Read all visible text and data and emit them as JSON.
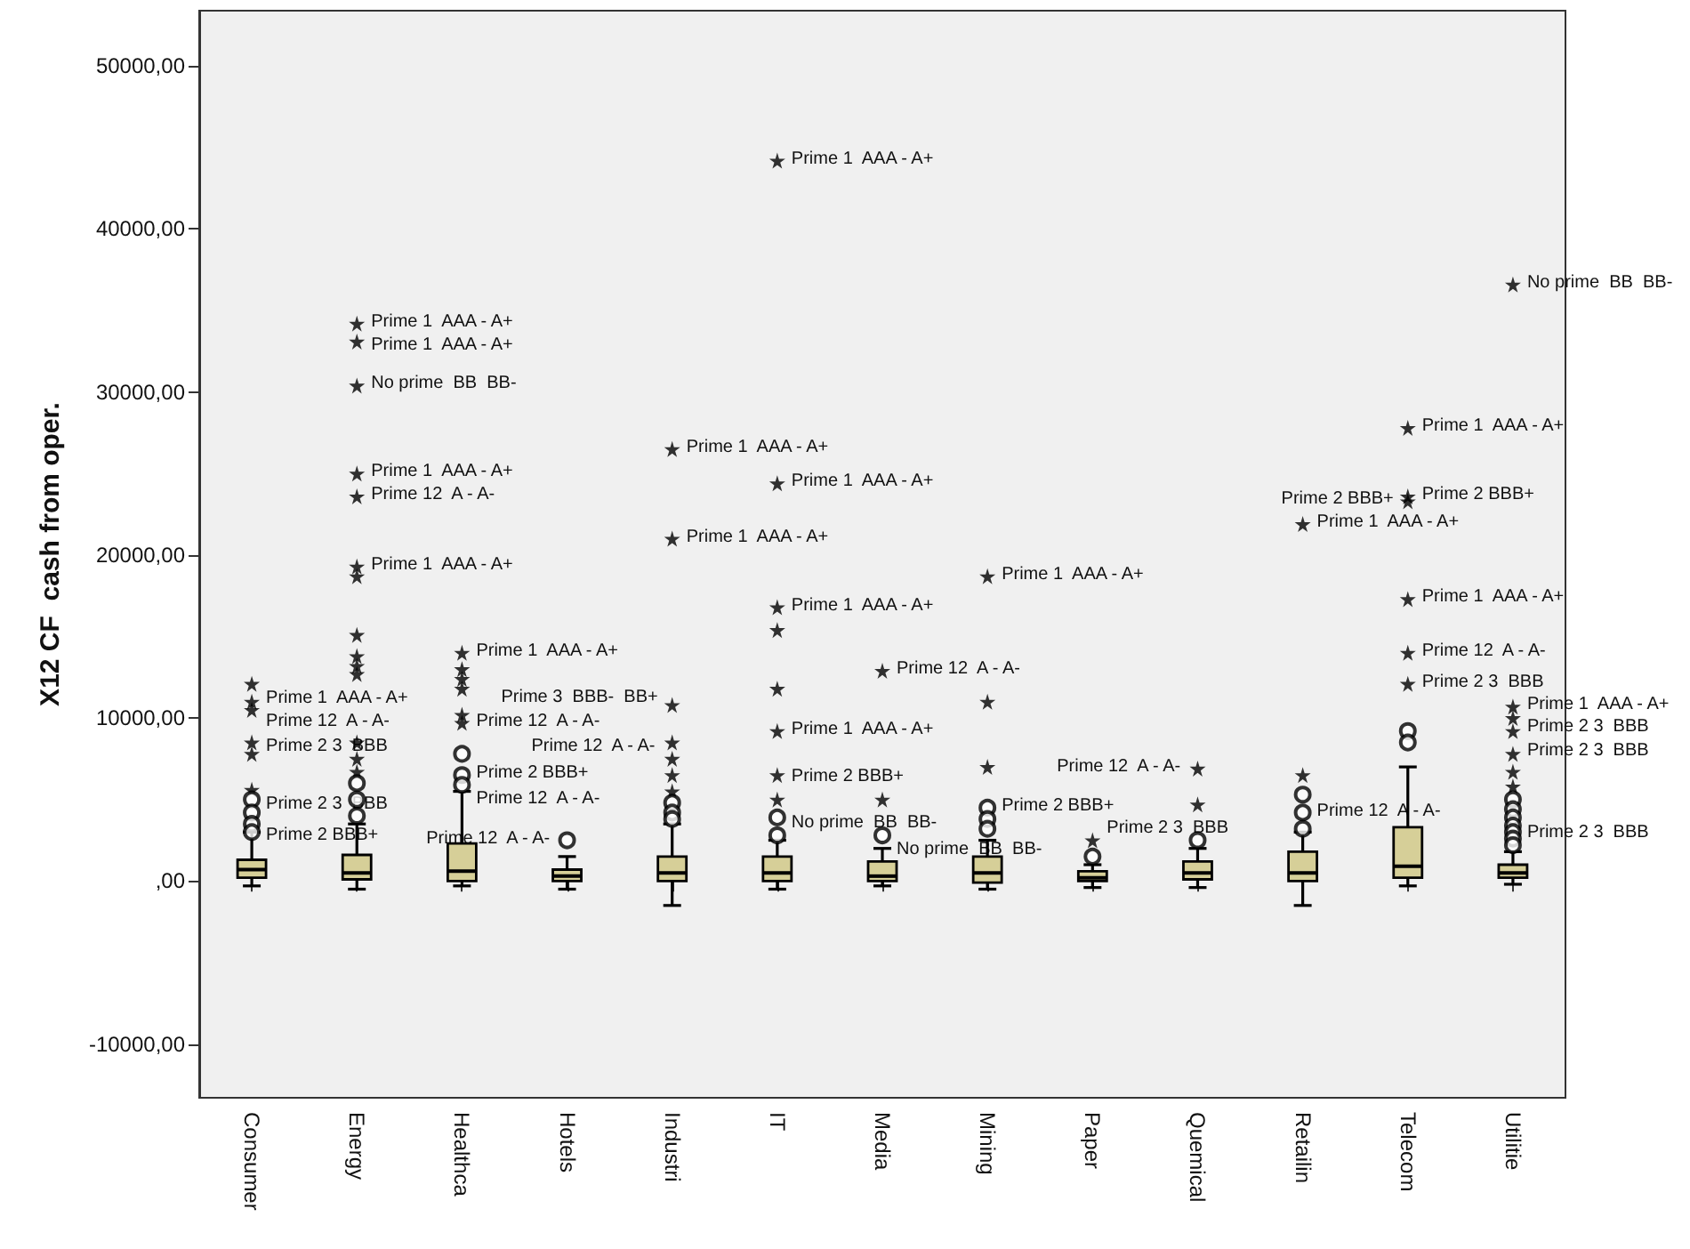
{
  "chart_data": {
    "type": "box",
    "ylabel": "X12 CF  cash from oper.",
    "color": "#d6cf98",
    "grid": false,
    "categories": [
      "Consumer",
      "Energy",
      "Healthca",
      "Hotels",
      "Industri",
      "IT",
      "Media",
      "Mining",
      "Paper",
      "Quemical",
      "Retailin",
      "Telecom",
      "Utilitie"
    ],
    "ylim": [
      -13300,
      53400
    ],
    "yticks": [
      {
        "value": -10000,
        "label": "-10000,00"
      },
      {
        "value": 0,
        "label": ",00"
      },
      {
        "value": 10000,
        "label": "10000,00"
      },
      {
        "value": 20000,
        "label": "20000,00"
      },
      {
        "value": 30000,
        "label": "30000,00"
      },
      {
        "value": 40000,
        "label": "40000,00"
      },
      {
        "value": 50000,
        "label": "50000,00"
      }
    ],
    "boxes": [
      {
        "low": -300,
        "q1": 200,
        "median": 700,
        "q3": 1300,
        "high": 3000
      },
      {
        "low": -500,
        "q1": 100,
        "median": 500,
        "q3": 1600,
        "high": 3500
      },
      {
        "low": -300,
        "q1": 0,
        "median": 600,
        "q3": 2300,
        "high": 5500
      },
      {
        "low": -500,
        "q1": 0,
        "median": 300,
        "q3": 700,
        "high": 1500
      },
      {
        "low": -1500,
        "q1": 0,
        "median": 500,
        "q3": 1500,
        "high": 3500
      },
      {
        "low": -500,
        "q1": 0,
        "median": 500,
        "q3": 1500,
        "high": 2500
      },
      {
        "low": -300,
        "q1": 0,
        "median": 300,
        "q3": 1200,
        "high": 2000
      },
      {
        "low": -500,
        "q1": -100,
        "median": 500,
        "q3": 1500,
        "high": 2500
      },
      {
        "low": -400,
        "q1": 0,
        "median": 200,
        "q3": 600,
        "high": 1000
      },
      {
        "low": -400,
        "q1": 100,
        "median": 500,
        "q3": 1200,
        "high": 2000
      },
      {
        "low": -1500,
        "q1": 0,
        "median": 500,
        "q3": 1800,
        "high": 3000
      },
      {
        "low": -300,
        "q1": 200,
        "median": 900,
        "q3": 3300,
        "high": 7000
      },
      {
        "low": -200,
        "q1": 200,
        "median": 500,
        "q3": 1000,
        "high": 1800
      }
    ],
    "series": [
      {
        "type": "scatter",
        "marker": "star",
        "color": "#000000",
        "x": [
          "Consumer",
          "Consumer",
          "Consumer",
          "Consumer",
          "Consumer",
          "Consumer",
          "Energy",
          "Energy",
          "Energy",
          "Energy",
          "Energy",
          "Energy",
          "Energy",
          "Energy",
          "Energy",
          "Energy",
          "Energy",
          "Energy",
          "Energy",
          "Energy",
          "Healthca",
          "Healthca",
          "Healthca",
          "Healthca",
          "Healthca",
          "Healthca",
          "Industri",
          "Industri",
          "Industri",
          "Industri",
          "Industri",
          "Industri",
          "Industri",
          "IT",
          "IT",
          "IT",
          "IT",
          "IT",
          "IT",
          "IT",
          "IT",
          "Media",
          "Media",
          "Mining",
          "Mining",
          "Mining",
          "Paper",
          "Quemical",
          "Quemical",
          "Retailin",
          "Retailin",
          "Telecom",
          "Telecom",
          "Telecom",
          "Telecom",
          "Telecom",
          "Telecom",
          "Utilitie",
          "Utilitie",
          "Utilitie",
          "Utilitie",
          "Utilitie",
          "Utilitie",
          "Utilitie"
        ],
        "values": [
          12100,
          11000,
          10500,
          8500,
          7800,
          5600,
          34200,
          33100,
          30400,
          25000,
          23600,
          19300,
          18700,
          15100,
          13800,
          13200,
          12700,
          8500,
          7500,
          6700,
          14000,
          13000,
          12400,
          11800,
          10200,
          9700,
          26500,
          21000,
          10800,
          8500,
          7500,
          6500,
          5500,
          44200,
          24400,
          16800,
          15400,
          11800,
          9200,
          6500,
          5000,
          12900,
          5000,
          18700,
          11000,
          7000,
          2500,
          6900,
          4700,
          21900,
          6500,
          27800,
          23600,
          23300,
          17300,
          14000,
          12100,
          36600,
          10700,
          10000,
          9200,
          7800,
          6700,
          5800
        ]
      },
      {
        "type": "scatter",
        "marker": "circle",
        "color": "#000000",
        "x": [
          "Consumer",
          "Consumer",
          "Consumer",
          "Consumer",
          "Energy",
          "Energy",
          "Energy",
          "Healthca",
          "Healthca",
          "Healthca",
          "Hotels",
          "Industri",
          "Industri",
          "Industri",
          "IT",
          "IT",
          "Media",
          "Mining",
          "Mining",
          "Mining",
          "Paper",
          "Quemical",
          "Retailin",
          "Retailin",
          "Retailin",
          "Telecom",
          "Telecom",
          "Utilitie",
          "Utilitie",
          "Utilitie",
          "Utilitie",
          "Utilitie",
          "Utilitie",
          "Utilitie"
        ],
        "values": [
          5000,
          4200,
          3500,
          3000,
          6000,
          5000,
          4000,
          7800,
          6500,
          5900,
          2500,
          4800,
          4200,
          3800,
          3900,
          2800,
          2800,
          4500,
          3800,
          3200,
          1500,
          2500,
          5300,
          4200,
          3200,
          9200,
          8500,
          5000,
          4400,
          3900,
          3400,
          3000,
          2600,
          2200
        ]
      }
    ],
    "annotations": [
      {
        "text": "Prime 1  AAA - A+",
        "x": "Consumer",
        "y": 12100
      },
      {
        "text": "Prime 12  A - A-",
        "x": "Consumer",
        "y": 11000
      },
      {
        "text": "Prime 2 3  BBB",
        "x": "Consumer",
        "y": 8500
      },
      {
        "text": "Prime 2 3  BBB",
        "x": "Consumer",
        "y": 5600
      },
      {
        "text": "Prime 2 BBB+",
        "x": "Consumer",
        "y": 3000
      },
      {
        "text": "Prime 1  AAA - A+",
        "x": "Energy",
        "y": 34200
      },
      {
        "text": "Prime 1  AAA - A+",
        "x": "Energy",
        "y": 33100
      },
      {
        "text": "No prime  BB  BB-",
        "x": "Energy",
        "y": 30400
      },
      {
        "text": "Prime 1  AAA - A+",
        "x": "Energy",
        "y": 25000
      },
      {
        "text": "Prime 12  A - A-",
        "x": "Energy",
        "y": 23600
      },
      {
        "text": "Prime 1  AAA - A+",
        "x": "Energy",
        "y": 19300
      },
      {
        "text": "Prime 1  AAA - A+",
        "x": "Healthca",
        "y": 14000
      },
      {
        "text": "Prime 12  A - A-",
        "x": "Healthca",
        "y": 9700
      },
      {
        "text": "Prime 2 BBB+",
        "x": "Healthca",
        "y": 6500
      },
      {
        "text": "Prime 12  A - A-",
        "x": "Healthca",
        "y": 5900
      },
      {
        "text": "Prime 12  A - A-",
        "x": "Hotels",
        "y": 2500
      },
      {
        "text": "Prime 1  AAA - A+",
        "x": "Industri",
        "y": 26500
      },
      {
        "text": "Prime 1  AAA - A+",
        "x": "Industri",
        "y": 21000
      },
      {
        "text": "Prime 3  BBB-  BB+",
        "x": "Industri",
        "y": 10800
      },
      {
        "text": "Prime 12  A - A-",
        "x": "Industri",
        "y": 8500
      },
      {
        "text": "Prime 1  AAA - A+",
        "x": "IT",
        "y": 44200
      },
      {
        "text": "Prime 1  AAA - A+",
        "x": "IT",
        "y": 24400
      },
      {
        "text": "Prime 1  AAA - A+",
        "x": "IT",
        "y": 16800
      },
      {
        "text": "Prime 1  AAA - A+",
        "x": "IT",
        "y": 9200
      },
      {
        "text": "Prime 2 BBB+",
        "x": "IT",
        "y": 5000
      },
      {
        "text": "No prime  BB  BB-",
        "x": "IT",
        "y": 2800
      },
      {
        "text": "Prime 12  A - A-",
        "x": "Media",
        "y": 12900
      },
      {
        "text": "No prime  BB  BB-",
        "x": "Media",
        "y": 2800
      },
      {
        "text": "Prime 1  AAA - A+",
        "x": "Mining",
        "y": 18700
      },
      {
        "text": "Prime 2 BBB+",
        "x": "Mining",
        "y": 4500
      },
      {
        "text": "Prime 2 3  BBB",
        "x": "Paper",
        "y": 2500
      },
      {
        "text": "Prime 12  A - A-",
        "x": "Quemical",
        "y": 6900
      },
      {
        "text": "Prime 1  AAA - A+",
        "x": "Retailin",
        "y": 21900
      },
      {
        "text": "Prime 12  A - A-",
        "x": "Retailin",
        "y": 3200
      },
      {
        "text": "Prime 1  AAA - A+",
        "x": "Telecom",
        "y": 27800
      },
      {
        "text": "Prime 2 BBB+",
        "x": "Telecom",
        "y": 23600
      },
      {
        "text": "Prime 2 BBB+",
        "x": "Telecom",
        "y": 23300
      },
      {
        "text": "Prime 1  AAA - A+",
        "x": "Telecom",
        "y": 17300
      },
      {
        "text": "Prime 12  A - A-",
        "x": "Telecom",
        "y": 14000
      },
      {
        "text": "Prime 2 3  BBB",
        "x": "Telecom",
        "y": 12100
      },
      {
        "text": "No prime  BB  BB-",
        "x": "Utilitie",
        "y": 36600
      },
      {
        "text": "Prime 1  AAA - A+",
        "x": "Utilitie",
        "y": 10700
      },
      {
        "text": "Prime 2 3  BBB",
        "x": "Utilitie",
        "y": 10000
      },
      {
        "text": "Prime 2 3  BBB",
        "x": "Utilitie",
        "y": 9200
      },
      {
        "text": "Prime 2 3  BBB",
        "x": "Utilitie",
        "y": 2200
      }
    ]
  }
}
